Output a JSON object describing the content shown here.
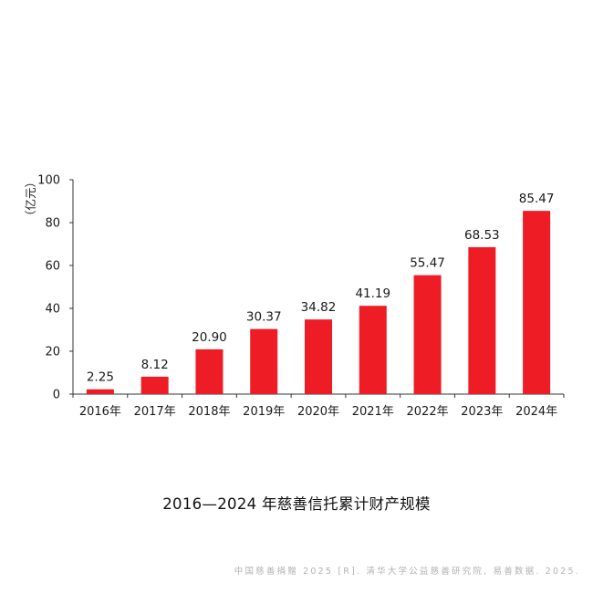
{
  "chart_data": {
    "type": "bar",
    "title": "2016—2024 年慈善信托累计财产规模",
    "ylabel": "（亿元）",
    "xlabel": "",
    "categories": [
      "2016年",
      "2017年",
      "2018年",
      "2019年",
      "2020年",
      "2021年",
      "2022年",
      "2023年",
      "2024年"
    ],
    "values": [
      2.25,
      8.12,
      20.9,
      30.37,
      34.82,
      41.19,
      55.47,
      68.53,
      85.47
    ],
    "value_labels": [
      "2.25",
      "8.12",
      "20.90",
      "30.37",
      "34.82",
      "41.19",
      "55.47",
      "68.53",
      "85.47"
    ],
    "ylim": [
      0,
      100
    ],
    "yticks": [
      0,
      20,
      40,
      60,
      80,
      100
    ],
    "grid": false,
    "legend": "none",
    "bar_color": "#ee1c25",
    "axis_color": "#333333"
  },
  "source": "中国慈善捐赠 2025 [R]. 清华大学公益慈善研究院, 易善数据. 2025."
}
